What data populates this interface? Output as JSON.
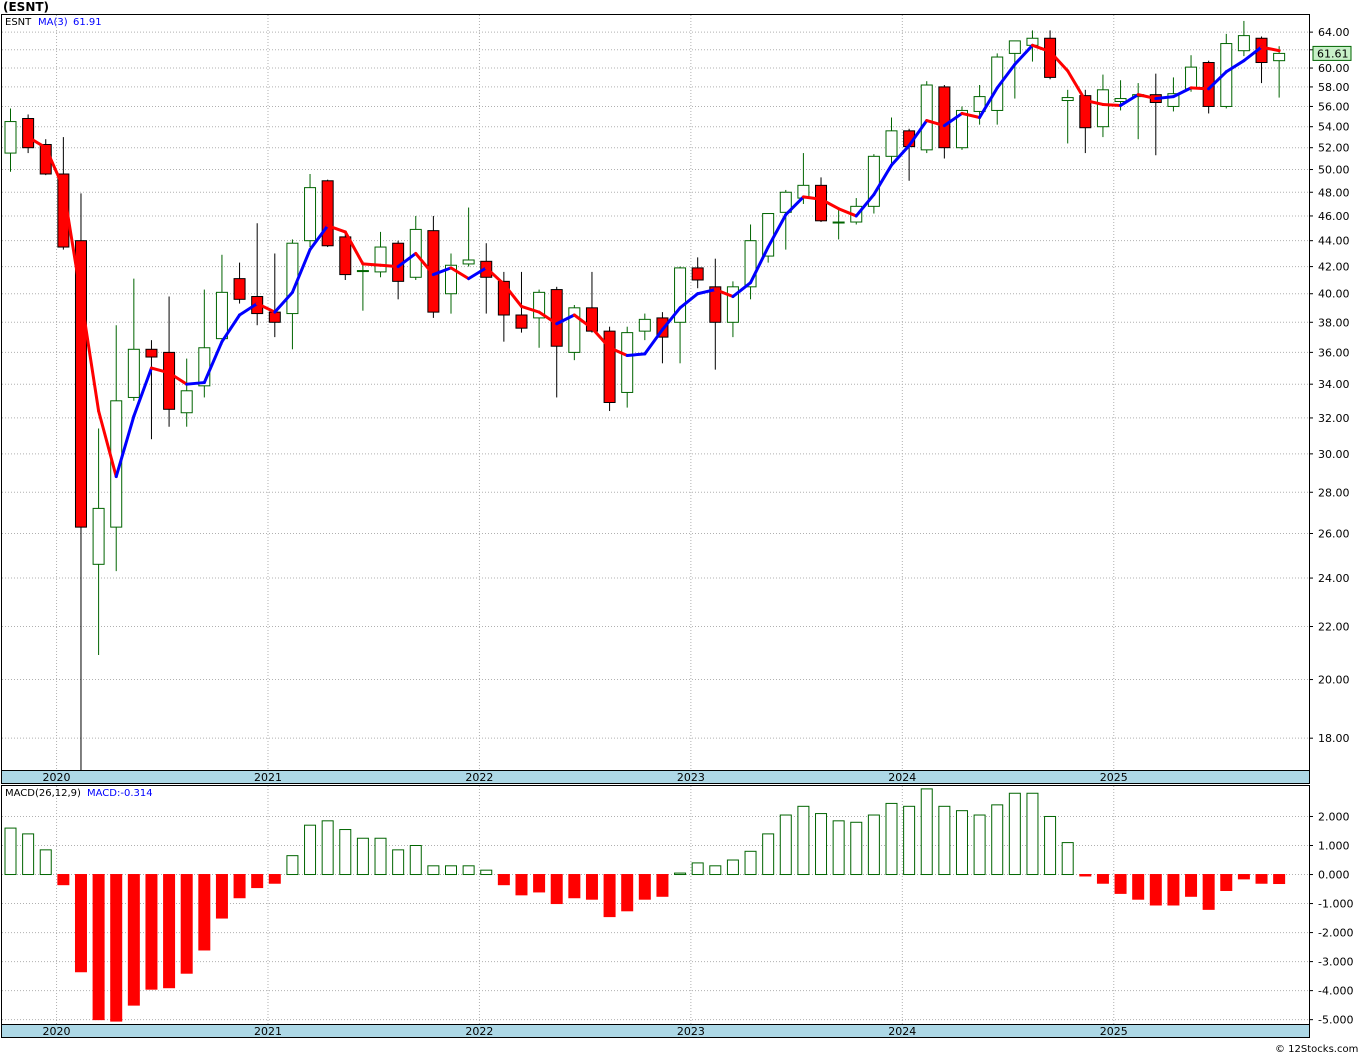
{
  "title": "(ESNT)",
  "price_panel": {
    "symbol": "ESNT",
    "ma_label": "MA(3)",
    "ma_value": "61.91",
    "last_price_badge": "61.61"
  },
  "macd_panel": {
    "label": "MACD(26,12,9)",
    "macd_label": "MACD:-0.314"
  },
  "footer": "© 12Stocks.com",
  "colors": {
    "up_body": "#ffffff",
    "up_edge": "#006400",
    "down_body": "#ff0000",
    "down_edge": "#000000",
    "ma_up": "#0000ff",
    "ma_down": "#ff0000",
    "hist_pos_edge": "#006400",
    "hist_neg": "#ff0000",
    "year_band": "#add8e6",
    "badge_bg": "#c8f0c8"
  },
  "chart_data": [
    {
      "type": "candlestick",
      "period": "monthly",
      "scale": "log",
      "ylim": [
        17,
        66
      ],
      "y_ticks": [
        18,
        20,
        22,
        24,
        26,
        28,
        30,
        32,
        34,
        36,
        38,
        40,
        42,
        44,
        46,
        48,
        50,
        52,
        54,
        56,
        58,
        60,
        62,
        64
      ],
      "y_tick_labels": [
        "18.00",
        "20.00",
        "22.00",
        "24.00",
        "26.00",
        "28.00",
        "30.00",
        "32.00",
        "34.00",
        "36.00",
        "38.00",
        "40.00",
        "42.00",
        "44.00",
        "46.00",
        "48.00",
        "50.00",
        "52.00",
        "54.00",
        "56.00",
        "58.00",
        "60.00",
        "62.00",
        "64.00"
      ],
      "x_labels": [
        "2020",
        "2021",
        "2022",
        "2023",
        "2024",
        "2025"
      ],
      "x_label_positions_month_index": [
        2,
        14,
        26,
        38,
        50,
        62
      ],
      "candles": [
        {
          "o": 51.5,
          "h": 55.8,
          "l": 49.8,
          "c": 54.5
        },
        {
          "o": 54.8,
          "h": 55.2,
          "l": 51.5,
          "c": 52.0
        },
        {
          "o": 52.3,
          "h": 52.8,
          "l": 49.5,
          "c": 49.6
        },
        {
          "o": 49.6,
          "h": 53.0,
          "l": 43.3,
          "c": 43.5
        },
        {
          "o": 44.0,
          "h": 47.9,
          "l": 17.0,
          "c": 26.3
        },
        {
          "o": 24.6,
          "h": 31.4,
          "l": 20.9,
          "c": 27.2
        },
        {
          "o": 26.3,
          "h": 37.8,
          "l": 24.3,
          "c": 33.0
        },
        {
          "o": 33.2,
          "h": 41.1,
          "l": 33.0,
          "c": 36.2
        },
        {
          "o": 36.2,
          "h": 36.8,
          "l": 30.8,
          "c": 35.7
        },
        {
          "o": 36.0,
          "h": 39.8,
          "l": 31.5,
          "c": 32.5
        },
        {
          "o": 32.3,
          "h": 35.6,
          "l": 31.5,
          "c": 33.6
        },
        {
          "o": 33.9,
          "h": 40.3,
          "l": 33.2,
          "c": 36.3
        },
        {
          "o": 36.9,
          "h": 42.9,
          "l": 36.5,
          "c": 40.1
        },
        {
          "o": 41.1,
          "h": 42.3,
          "l": 39.3,
          "c": 39.6
        },
        {
          "o": 39.8,
          "h": 45.4,
          "l": 37.8,
          "c": 38.6
        },
        {
          "o": 38.7,
          "h": 43.0,
          "l": 37.0,
          "c": 38.0
        },
        {
          "o": 38.6,
          "h": 44.1,
          "l": 36.2,
          "c": 43.8
        },
        {
          "o": 44.0,
          "h": 49.6,
          "l": 43.5,
          "c": 48.4
        },
        {
          "o": 49.0,
          "h": 49.1,
          "l": 43.5,
          "c": 43.6
        },
        {
          "o": 44.3,
          "h": 44.8,
          "l": 41.0,
          "c": 41.4
        },
        {
          "o": 41.7,
          "h": 42.4,
          "l": 38.8,
          "c": 41.7
        },
        {
          "o": 41.6,
          "h": 44.7,
          "l": 41.2,
          "c": 43.5
        },
        {
          "o": 43.8,
          "h": 44.0,
          "l": 39.6,
          "c": 40.9
        },
        {
          "o": 41.2,
          "h": 46.0,
          "l": 41.0,
          "c": 44.9
        },
        {
          "o": 44.8,
          "h": 46.0,
          "l": 38.3,
          "c": 38.7
        },
        {
          "o": 40.0,
          "h": 43.0,
          "l": 38.6,
          "c": 42.1
        },
        {
          "o": 42.2,
          "h": 46.7,
          "l": 42.0,
          "c": 42.5
        },
        {
          "o": 42.4,
          "h": 43.8,
          "l": 38.6,
          "c": 41.2
        },
        {
          "o": 40.9,
          "h": 41.6,
          "l": 36.7,
          "c": 38.5
        },
        {
          "o": 38.5,
          "h": 41.6,
          "l": 37.3,
          "c": 37.6
        },
        {
          "o": 38.3,
          "h": 40.3,
          "l": 36.3,
          "c": 40.1
        },
        {
          "o": 40.3,
          "h": 40.5,
          "l": 33.2,
          "c": 36.4
        },
        {
          "o": 36.0,
          "h": 39.2,
          "l": 35.5,
          "c": 39.0
        },
        {
          "o": 39.0,
          "h": 41.6,
          "l": 37.3,
          "c": 37.4
        },
        {
          "o": 37.4,
          "h": 37.7,
          "l": 32.4,
          "c": 32.9
        },
        {
          "o": 33.5,
          "h": 37.7,
          "l": 32.6,
          "c": 37.3
        },
        {
          "o": 37.4,
          "h": 38.6,
          "l": 36.8,
          "c": 38.2
        },
        {
          "o": 38.3,
          "h": 38.7,
          "l": 35.3,
          "c": 37.0
        },
        {
          "o": 38.0,
          "h": 42.0,
          "l": 35.3,
          "c": 41.9
        },
        {
          "o": 41.9,
          "h": 42.7,
          "l": 40.4,
          "c": 41.0
        },
        {
          "o": 40.5,
          "h": 42.6,
          "l": 34.9,
          "c": 38.0
        },
        {
          "o": 38.0,
          "h": 40.9,
          "l": 37.0,
          "c": 40.5
        },
        {
          "o": 40.5,
          "h": 45.3,
          "l": 39.6,
          "c": 44.0
        },
        {
          "o": 42.8,
          "h": 46.2,
          "l": 42.3,
          "c": 46.2
        },
        {
          "o": 46.3,
          "h": 48.2,
          "l": 43.3,
          "c": 48.0
        },
        {
          "o": 47.5,
          "h": 51.5,
          "l": 47.0,
          "c": 48.6
        },
        {
          "o": 48.6,
          "h": 49.3,
          "l": 45.5,
          "c": 45.6
        },
        {
          "o": 45.5,
          "h": 46.5,
          "l": 44.1,
          "c": 45.5
        },
        {
          "o": 45.5,
          "h": 47.5,
          "l": 45.3,
          "c": 46.8
        },
        {
          "o": 46.8,
          "h": 51.4,
          "l": 46.2,
          "c": 51.2
        },
        {
          "o": 51.2,
          "h": 54.9,
          "l": 50.3,
          "c": 53.6
        },
        {
          "o": 53.6,
          "h": 53.8,
          "l": 49.0,
          "c": 52.1
        },
        {
          "o": 51.8,
          "h": 58.6,
          "l": 51.5,
          "c": 58.2
        },
        {
          "o": 58.0,
          "h": 58.2,
          "l": 51.0,
          "c": 52.0
        },
        {
          "o": 52.0,
          "h": 56.0,
          "l": 51.8,
          "c": 55.6
        },
        {
          "o": 55.5,
          "h": 58.2,
          "l": 54.2,
          "c": 57.0
        },
        {
          "o": 55.6,
          "h": 61.6,
          "l": 54.2,
          "c": 61.2
        },
        {
          "o": 61.6,
          "h": 63.0,
          "l": 56.8,
          "c": 63.0
        },
        {
          "o": 62.5,
          "h": 64.2,
          "l": 60.7,
          "c": 63.3
        },
        {
          "o": 63.3,
          "h": 64.2,
          "l": 58.8,
          "c": 59.0
        },
        {
          "o": 56.6,
          "h": 57.7,
          "l": 52.4,
          "c": 56.9
        },
        {
          "o": 57.1,
          "h": 57.7,
          "l": 51.5,
          "c": 53.9
        },
        {
          "o": 54.0,
          "h": 59.3,
          "l": 53.0,
          "c": 57.7
        },
        {
          "o": 56.5,
          "h": 58.7,
          "l": 55.6,
          "c": 56.8
        },
        {
          "o": 57.0,
          "h": 58.4,
          "l": 52.8,
          "c": 57.2
        },
        {
          "o": 57.2,
          "h": 59.4,
          "l": 51.3,
          "c": 56.4
        },
        {
          "o": 56.0,
          "h": 59.0,
          "l": 55.5,
          "c": 57.3
        },
        {
          "o": 57.8,
          "h": 61.4,
          "l": 57.5,
          "c": 60.1
        },
        {
          "o": 60.6,
          "h": 60.8,
          "l": 55.3,
          "c": 56.0
        },
        {
          "o": 56.0,
          "h": 63.8,
          "l": 55.8,
          "c": 62.7
        },
        {
          "o": 61.9,
          "h": 65.3,
          "l": 61.3,
          "c": 63.6
        },
        {
          "o": 63.3,
          "h": 63.5,
          "l": 58.4,
          "c": 60.6
        },
        {
          "o": 60.8,
          "h": 62.4,
          "l": 56.9,
          "c": 61.6
        }
      ],
      "ma3": [
        null,
        53.0,
        52.0,
        48.4,
        39.8,
        32.4,
        28.8,
        32.1,
        35.0,
        34.7,
        34.0,
        34.1,
        36.7,
        38.5,
        39.3,
        38.7,
        40.1,
        43.3,
        45.2,
        44.7,
        42.2,
        42.1,
        42.0,
        43.0,
        41.4,
        41.9,
        41.1,
        41.9,
        40.7,
        39.1,
        38.7,
        37.9,
        38.5,
        37.6,
        36.3,
        35.8,
        35.9,
        37.5,
        39.0,
        40.0,
        40.3,
        39.8,
        40.8,
        43.5,
        46.1,
        47.6,
        47.4,
        46.6,
        46.0,
        47.8,
        50.4,
        52.2,
        54.6,
        54.1,
        55.3,
        54.9,
        57.9,
        60.4,
        62.5,
        61.8,
        59.7,
        56.6,
        56.2,
        56.1,
        57.2,
        56.8,
        57.0,
        57.9,
        57.8,
        59.6,
        60.8,
        62.3,
        61.9
      ],
      "ma3_label": "MA(3)"
    },
    {
      "type": "bar",
      "name": "MACD(26,12,9)",
      "ylim": [
        -5.15,
        3.05
      ],
      "y_ticks": [
        -5,
        -4,
        -3,
        -2,
        -1,
        0,
        1,
        2
      ],
      "y_tick_labels": [
        "-5.000",
        "-4.000",
        "-3.000",
        "-2.000",
        "-1.000",
        "0.000",
        "1.000",
        "2.000"
      ],
      "values": [
        1.6,
        1.4,
        0.85,
        -0.35,
        -3.35,
        -5.0,
        -5.05,
        -4.5,
        -3.95,
        -3.9,
        -3.4,
        -2.6,
        -1.5,
        -0.8,
        -0.45,
        -0.3,
        0.65,
        1.7,
        1.85,
        1.55,
        1.25,
        1.25,
        0.85,
        1.0,
        0.3,
        0.3,
        0.3,
        0.15,
        -0.35,
        -0.7,
        -0.6,
        -1.0,
        -0.8,
        -0.85,
        -1.45,
        -1.25,
        -0.85,
        -0.75,
        0.05,
        0.4,
        0.3,
        0.5,
        0.8,
        1.4,
        2.05,
        2.35,
        2.1,
        1.85,
        1.8,
        2.05,
        2.45,
        2.35,
        2.95,
        2.35,
        2.2,
        2.05,
        2.4,
        2.8,
        2.8,
        2.0,
        1.1,
        -0.05,
        -0.3,
        -0.65,
        -0.85,
        -1.05,
        -1.05,
        -0.75,
        -1.2,
        -0.55,
        -0.15,
        -0.3,
        -0.31
      ]
    }
  ]
}
